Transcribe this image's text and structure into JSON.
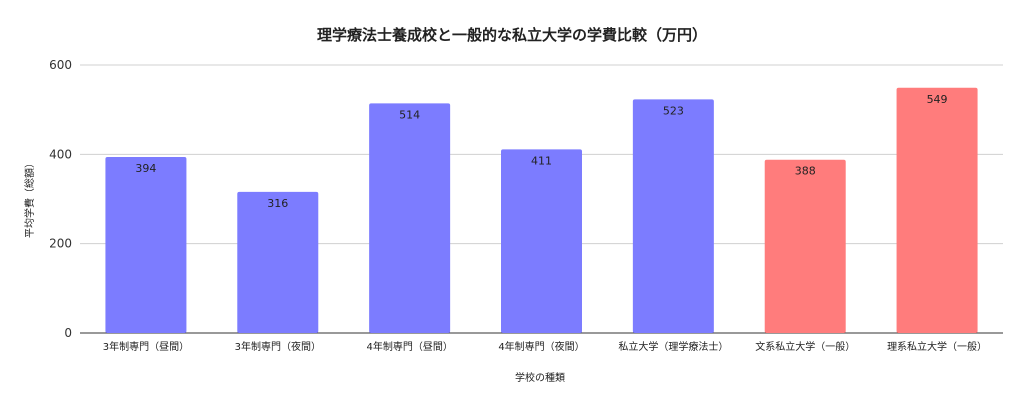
{
  "chart_data": {
    "type": "bar",
    "title": "理学療法士養成校と一般的な私立大学の学費比較（万円）",
    "xlabel": "学校の種類",
    "ylabel": "平均学費（総額）",
    "ylim": [
      0,
      600
    ],
    "yticks": [
      0,
      200,
      400,
      600
    ],
    "grid": true,
    "legend": "none",
    "categories": [
      "3年制専門（昼間）",
      "3年制専門（夜間）",
      "4年制専門（昼間）",
      "4年制専門（夜間）",
      "私立大学（理学療法士）",
      "文系私立大学（一般）",
      "理系私立大学（一般）"
    ],
    "values": [
      394,
      316,
      514,
      411,
      523,
      388,
      549
    ],
    "colors": [
      "#7c7cff",
      "#7c7cff",
      "#7c7cff",
      "#7c7cff",
      "#7c7cff",
      "#ff7c7c",
      "#ff7c7c"
    ]
  }
}
